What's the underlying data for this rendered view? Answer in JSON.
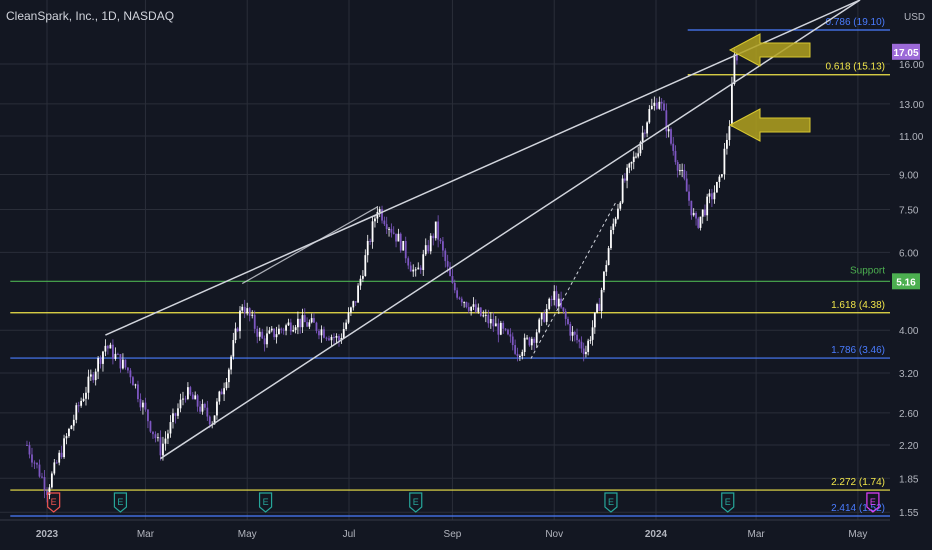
{
  "header": {
    "title": "CleanSpark, Inc., 1D, NASDAQ",
    "currency": "USD"
  },
  "colors": {
    "background": "#131722",
    "grid": "#2a2e39",
    "text": "#b2b5be",
    "bull": "#ffffff",
    "bear": "#7e57c2",
    "trend": "#d1d4dc",
    "fib_yellow": "#f0e54a",
    "fib_blue": "#4a7cff",
    "support": "#4caf50",
    "arrow": "#b3a21f",
    "earnings_green": "#26a69a",
    "earnings_red": "#ef5350",
    "earnings_magenta": "#e040fb",
    "price_label": "#9c6ad8"
  },
  "chart_data": {
    "type": "candlestick",
    "scale": "log",
    "y_ticks": [
      "16.00",
      "13.00",
      "11.00",
      "9.00",
      "7.50",
      "6.00",
      "4.00",
      "3.20",
      "2.60",
      "2.20",
      "1.85",
      "1.55"
    ],
    "x_ticks": [
      "2023",
      "Mar",
      "May",
      "Jul",
      "Sep",
      "Nov",
      "2024",
      "Mar",
      "May"
    ],
    "last_price": "17.05",
    "series": [
      {
        "date": "2022-12-20",
        "close": 2.2
      },
      {
        "date": "2023-01-01",
        "close": 1.75
      },
      {
        "date": "2023-01-20",
        "close": 2.7
      },
      {
        "date": "2023-02-05",
        "close": 3.7
      },
      {
        "date": "2023-02-20",
        "close": 3.2
      },
      {
        "date": "2023-03-01",
        "close": 2.6
      },
      {
        "date": "2023-03-10",
        "close": 2.15
      },
      {
        "date": "2023-03-25",
        "close": 2.9
      },
      {
        "date": "2023-04-10",
        "close": 2.5
      },
      {
        "date": "2023-04-20",
        "close": 3.3
      },
      {
        "date": "2023-04-28",
        "close": 4.6
      },
      {
        "date": "2023-05-10",
        "close": 3.8
      },
      {
        "date": "2023-05-30",
        "close": 4.2
      },
      {
        "date": "2023-06-10",
        "close": 4.1
      },
      {
        "date": "2023-06-25",
        "close": 3.8
      },
      {
        "date": "2023-07-05",
        "close": 4.7
      },
      {
        "date": "2023-07-18",
        "close": 7.6
      },
      {
        "date": "2023-08-01",
        "close": 6.3
      },
      {
        "date": "2023-08-10",
        "close": 5.3
      },
      {
        "date": "2023-08-22",
        "close": 6.8
      },
      {
        "date": "2023-09-01",
        "close": 5.0
      },
      {
        "date": "2023-09-15",
        "close": 4.4
      },
      {
        "date": "2023-09-30",
        "close": 4.0
      },
      {
        "date": "2023-10-10",
        "close": 3.6
      },
      {
        "date": "2023-10-20",
        "close": 3.9
      },
      {
        "date": "2023-11-01",
        "close": 4.8
      },
      {
        "date": "2023-11-12",
        "close": 3.9
      },
      {
        "date": "2023-11-20",
        "close": 3.6
      },
      {
        "date": "2023-11-28",
        "close": 4.6
      },
      {
        "date": "2023-12-05",
        "close": 6.6
      },
      {
        "date": "2023-12-12",
        "close": 8.5
      },
      {
        "date": "2023-12-20",
        "close": 10.0
      },
      {
        "date": "2023-12-28",
        "close": 12.5
      },
      {
        "date": "2024-01-03",
        "close": 13.4
      },
      {
        "date": "2024-01-10",
        "close": 10.6
      },
      {
        "date": "2024-01-18",
        "close": 8.6
      },
      {
        "date": "2024-01-25",
        "close": 6.9
      },
      {
        "date": "2024-02-02",
        "close": 7.9
      },
      {
        "date": "2024-02-08",
        "close": 8.6
      },
      {
        "date": "2024-02-14",
        "close": 11.8
      },
      {
        "date": "2024-02-17",
        "close": 16.5
      },
      {
        "date": "2024-02-20",
        "close": 17.05
      }
    ],
    "levels": [
      {
        "label": "0.786 (19.10)",
        "value": 19.1,
        "color": "blue",
        "from": "2024-01-20"
      },
      {
        "label": "0.618 (15.13)",
        "value": 15.13,
        "color": "yellow",
        "from": "2024-01-20"
      },
      {
        "label": "Support",
        "value": 5.16,
        "color": "green",
        "from": "2022-12-10",
        "badge": "5.16"
      },
      {
        "label": "1.618 (4.38)",
        "value": 4.38,
        "color": "yellow",
        "from": "2022-12-10"
      },
      {
        "label": "1.786 (3.46)",
        "value": 3.46,
        "color": "blue",
        "from": "2022-12-10"
      },
      {
        "label": "2.272 (1.74)",
        "value": 1.74,
        "color": "yellow",
        "from": "2022-12-10"
      },
      {
        "label": "2.414 (1.52)",
        "value": 1.52,
        "color": "blue",
        "from": "2022-12-10"
      }
    ],
    "earnings": [
      {
        "date": "2023-01-05",
        "color": "red",
        "label": "E"
      },
      {
        "date": "2023-02-14",
        "color": "green",
        "label": "E"
      },
      {
        "date": "2023-05-12",
        "color": "green",
        "label": "E"
      },
      {
        "date": "2023-08-10",
        "color": "green",
        "label": "E"
      },
      {
        "date": "2023-12-05",
        "color": "green",
        "label": "E"
      },
      {
        "date": "2024-02-13",
        "color": "green",
        "label": "E"
      },
      {
        "date": "2024-05-10",
        "color": "magenta",
        "label": "E"
      }
    ]
  }
}
